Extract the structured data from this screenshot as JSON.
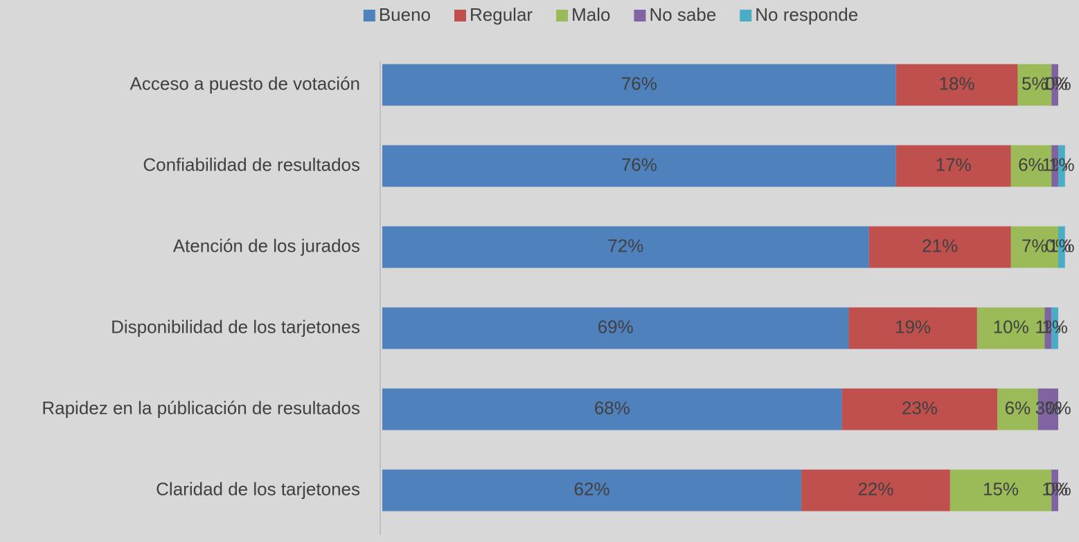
{
  "chart_data": {
    "type": "stacked_barh",
    "categories": [
      "Acceso a puesto de votación",
      "Confiabilidad de resultados",
      "Atención de los jurados",
      "Disponibilidad de los tarjetones",
      "Rapidez en la públicación de resultados",
      "Claridad de los tarjetones"
    ],
    "series": [
      {
        "name": "Bueno",
        "color": "#4f81bd",
        "values": [
          76,
          76,
          72,
          69,
          68,
          62
        ],
        "value_labels": [
          "76%",
          "76%",
          "72%",
          "69%",
          "68%",
          "62%"
        ]
      },
      {
        "name": "Regular",
        "color": "#c0504d",
        "values": [
          18,
          17,
          21,
          19,
          23,
          22
        ],
        "value_labels": [
          "18%",
          "17%",
          "21%",
          "19%",
          "23%",
          "22%"
        ]
      },
      {
        "name": "Malo",
        "color": "#9bbb59",
        "values": [
          5,
          6,
          7,
          10,
          6,
          15
        ],
        "value_labels": [
          "5%",
          "6%",
          "7%",
          "10%",
          "6%",
          "15%"
        ]
      },
      {
        "name": "No sabe",
        "color": "#8064a2",
        "values": [
          1,
          1,
          0,
          1,
          3,
          1
        ],
        "value_labels": [
          "1%",
          "1%",
          "0%",
          "1%",
          "3%",
          "1%"
        ]
      },
      {
        "name": "No responde",
        "color": "#4bacc6",
        "values": [
          0,
          1,
          1,
          1,
          0,
          0
        ],
        "value_labels": [
          "0%",
          "1%",
          "1%",
          "1%",
          "0%",
          "0%"
        ]
      }
    ],
    "xlim": [
      0,
      100
    ],
    "legend": "top"
  }
}
